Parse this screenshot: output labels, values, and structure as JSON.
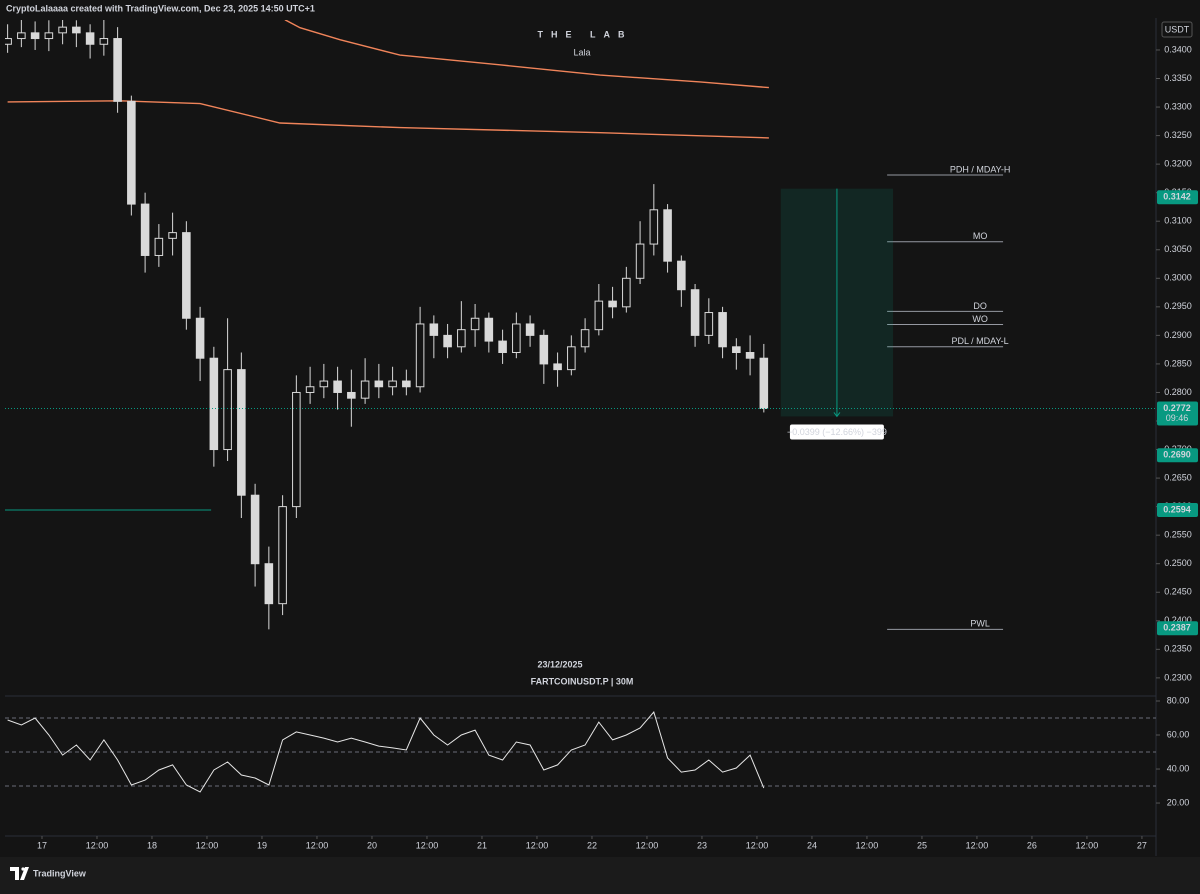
{
  "header": "CryptoLalaaaa created with TradingView.com, Dec 23, 2025 14:50 UTC+1",
  "brand": "TradingView",
  "chart_data": [
    {
      "type": "candlestick",
      "title": "THE LAB",
      "subtitle": "Lala",
      "date_label": "23/12/2025",
      "symbol_label": "FARTCOINUSDT.P | 30M",
      "currency": "USDT",
      "candle_color": "#d9d9d9",
      "x": [
        -7.5,
        -4.5,
        -1.5,
        1.5,
        4.5,
        7.5,
        10.5,
        13.5,
        16.5,
        19.5,
        22.5,
        25.5,
        28.5,
        31.5,
        34.5,
        37.5,
        40.5,
        43.5,
        46.5,
        49.5,
        52.5,
        55.5,
        58.5,
        61.5,
        64.5,
        67.5,
        70.5,
        73.5,
        76.5,
        79.5,
        82.5,
        85.5,
        88.5,
        91.5,
        94.5,
        97.5,
        100.5,
        103.5,
        106.5,
        109.5,
        112.5,
        115.5,
        118.5,
        121.5,
        124.5,
        127.5,
        130.5,
        133.5,
        136.5,
        139.5,
        142.5,
        145.5,
        148.5,
        151.5,
        154.5,
        157.5
      ],
      "open": [
        0.341,
        0.342,
        0.343,
        0.342,
        0.343,
        0.344,
        0.343,
        0.341,
        0.342,
        0.331,
        0.313,
        0.304,
        0.307,
        0.308,
        0.293,
        0.286,
        0.27,
        0.284,
        0.262,
        0.25,
        0.243,
        0.26,
        0.28,
        0.281,
        0.282,
        0.28,
        0.279,
        0.282,
        0.281,
        0.282,
        0.281,
        0.292,
        0.29,
        0.288,
        0.291,
        0.293,
        0.289,
        0.287,
        0.292,
        0.29,
        0.285,
        0.284,
        0.288,
        0.291,
        0.296,
        0.295,
        0.3,
        0.306,
        0.312,
        0.303,
        0.298,
        0.29,
        0.294,
        0.288,
        0.287,
        0.286
      ],
      "high": [
        0.3445,
        0.3455,
        0.345,
        0.3452,
        0.3453,
        0.3452,
        0.3445,
        0.3453,
        0.344,
        0.332,
        0.315,
        0.3095,
        0.3115,
        0.31,
        0.295,
        0.288,
        0.293,
        0.287,
        0.264,
        0.253,
        0.262,
        0.283,
        0.2845,
        0.285,
        0.2845,
        0.284,
        0.286,
        0.285,
        0.2845,
        0.284,
        0.295,
        0.2935,
        0.292,
        0.296,
        0.2955,
        0.294,
        0.291,
        0.294,
        0.2935,
        0.291,
        0.287,
        0.29,
        0.293,
        0.299,
        0.2985,
        0.302,
        0.31,
        0.3165,
        0.313,
        0.304,
        0.299,
        0.2965,
        0.295,
        0.2895,
        0.29,
        0.2885
      ],
      "low": [
        0.3395,
        0.3405,
        0.34,
        0.3398,
        0.341,
        0.3405,
        0.3385,
        0.339,
        0.329,
        0.311,
        0.301,
        0.302,
        0.304,
        0.291,
        0.282,
        0.267,
        0.268,
        0.258,
        0.246,
        0.2385,
        0.241,
        0.258,
        0.278,
        0.279,
        0.277,
        0.274,
        0.278,
        0.279,
        0.2795,
        0.2795,
        0.28,
        0.286,
        0.286,
        0.287,
        0.288,
        0.287,
        0.285,
        0.286,
        0.288,
        0.2815,
        0.281,
        0.283,
        0.287,
        0.29,
        0.293,
        0.294,
        0.299,
        0.304,
        0.301,
        0.295,
        0.288,
        0.2885,
        0.286,
        0.284,
        0.283,
        0.2765
      ],
      "close": [
        0.342,
        0.343,
        0.342,
        0.343,
        0.344,
        0.343,
        0.341,
        0.342,
        0.331,
        0.313,
        0.304,
        0.307,
        0.308,
        0.293,
        0.286,
        0.27,
        0.284,
        0.262,
        0.25,
        0.243,
        0.26,
        0.28,
        0.281,
        0.282,
        0.28,
        0.279,
        0.282,
        0.281,
        0.282,
        0.281,
        0.292,
        0.29,
        0.288,
        0.291,
        0.293,
        0.289,
        0.287,
        0.292,
        0.29,
        0.285,
        0.284,
        0.288,
        0.291,
        0.296,
        0.295,
        0.3,
        0.306,
        0.312,
        0.303,
        0.298,
        0.29,
        0.294,
        0.288,
        0.287,
        0.286,
        0.2772
      ],
      "xlim": [
        -8.07,
        242.85
      ],
      "ylim": [
        0.227,
        0.34525
      ],
      "xticks": [
        {
          "value": 0,
          "label": "17"
        },
        {
          "value": 12,
          "label": "12:00"
        },
        {
          "value": 24,
          "label": "18"
        },
        {
          "value": 36,
          "label": "12:00"
        },
        {
          "value": 48,
          "label": "19"
        },
        {
          "value": 60,
          "label": "12:00"
        },
        {
          "value": 72,
          "label": "20"
        },
        {
          "value": 84,
          "label": "12:00"
        },
        {
          "value": 96,
          "label": "21"
        },
        {
          "value": 108,
          "label": "12:00"
        },
        {
          "value": 120,
          "label": "22"
        },
        {
          "value": 132,
          "label": "12:00"
        },
        {
          "value": 144,
          "label": "23"
        },
        {
          "value": 156,
          "label": "12:00"
        },
        {
          "value": 168,
          "label": "24"
        },
        {
          "value": 180,
          "label": "12:00"
        },
        {
          "value": 192,
          "label": "25"
        },
        {
          "value": 204,
          "label": "12:00"
        },
        {
          "value": 216,
          "label": "26"
        },
        {
          "value": 228,
          "label": "12:00"
        },
        {
          "value": 240,
          "label": "27"
        }
      ],
      "yticks": [
        {
          "value": 0.23,
          "label": "0.2300"
        },
        {
          "value": 0.235,
          "label": "0.2350"
        },
        {
          "value": 0.24,
          "label": "0.2400"
        },
        {
          "value": 0.245,
          "label": "0.2450"
        },
        {
          "value": 0.25,
          "label": "0.2500"
        },
        {
          "value": 0.255,
          "label": "0.2550"
        },
        {
          "value": 0.26,
          "label": "0.2600"
        },
        {
          "value": 0.265,
          "label": "0.2650"
        },
        {
          "value": 0.27,
          "label": "0.2700"
        },
        {
          "value": 0.275,
          "label": "0.2750"
        },
        {
          "value": 0.28,
          "label": "0.2800"
        },
        {
          "value": 0.285,
          "label": "0.2850"
        },
        {
          "value": 0.29,
          "label": "0.2900"
        },
        {
          "value": 0.295,
          "label": "0.2950"
        },
        {
          "value": 0.3,
          "label": "0.3000"
        },
        {
          "value": 0.305,
          "label": "0.3050"
        },
        {
          "value": 0.31,
          "label": "0.3100"
        },
        {
          "value": 0.315,
          "label": "0.3150"
        },
        {
          "value": 0.32,
          "label": "0.3200"
        },
        {
          "value": 0.325,
          "label": "0.3250"
        },
        {
          "value": 0.33,
          "label": "0.3300"
        },
        {
          "value": 0.335,
          "label": "0.3350"
        },
        {
          "value": 0.34,
          "label": "0.3400"
        }
      ],
      "moving_averages": [
        {
          "color": "#f0845a",
          "x": [
            53.0,
            56.3,
            65.0,
            78.1,
            99.9,
            121.8,
            143.6,
            158.6
          ],
          "values": [
            0.3453,
            0.3439,
            0.3418,
            0.3391,
            0.3374,
            0.3356,
            0.3344,
            0.3334
          ]
        },
        {
          "color": "#f0845a",
          "x": [
            -7.5,
            17.0,
            34.5,
            51.9,
            78.1,
            121.8,
            158.6
          ],
          "values": [
            0.3309,
            0.3311,
            0.3306,
            0.3272,
            0.3264,
            0.3255,
            0.3246
          ]
        }
      ],
      "levels_x": [
        184.4,
        209.7
      ],
      "level_color": "#9598a1",
      "levels": [
        {
          "label": "PDH / MDAY-H",
          "value": 0.3181
        },
        {
          "label": "MO",
          "value": 0.3064
        },
        {
          "label": "DO",
          "value": 0.2942
        },
        {
          "label": "WO",
          "value": 0.2919
        },
        {
          "label": "PDL / MDAY-L",
          "value": 0.288
        },
        {
          "label": "PWL",
          "value": 0.2385
        }
      ],
      "tag_color": "#089981",
      "price_tags": [
        {
          "value": 0.3142,
          "label": "0.3142"
        },
        {
          "value": 0.269,
          "label": "0.2690"
        },
        {
          "value": 0.2594,
          "label": "0.2594",
          "line_x": [
            -8.07,
            36.9
          ]
        },
        {
          "value": 0.2387,
          "label": "0.2387"
        }
      ],
      "current_price": {
        "value": 0.2772,
        "label": "0.2772",
        "countdown": "09:46"
      },
      "measure": {
        "from": 0.3157,
        "to": 0.2758,
        "x": [
          161.2,
          185.7
        ],
        "label": "−0.0399 (−12.66%) −399"
      }
    },
    {
      "type": "line",
      "color": "#e6e6e6",
      "x": [
        -7.5,
        -4.5,
        -1.5,
        1.5,
        4.5,
        7.5,
        10.5,
        13.5,
        16.5,
        19.5,
        22.5,
        25.5,
        28.5,
        31.5,
        34.5,
        37.5,
        40.5,
        43.5,
        46.5,
        49.5,
        52.5,
        55.5,
        58.5,
        61.5,
        64.5,
        67.5,
        70.5,
        73.5,
        76.5,
        79.5,
        82.5,
        85.5,
        88.5,
        91.5,
        94.5,
        97.5,
        100.5,
        103.5,
        106.5,
        109.5,
        112.5,
        115.5,
        118.5,
        121.5,
        124.5,
        127.5,
        130.5,
        133.5,
        136.5,
        139.5,
        142.5,
        145.5,
        148.5,
        151.5,
        154.5,
        157.5
      ],
      "values": [
        68.8,
        65.9,
        70.0,
        60.0,
        48.2,
        54.1,
        45.3,
        57.1,
        45.3,
        30.6,
        33.5,
        39.4,
        42.4,
        30.6,
        26.5,
        39.4,
        44.1,
        36.5,
        34.7,
        30.6,
        57.1,
        61.8,
        60.0,
        58.2,
        55.9,
        58.2,
        55.9,
        53.5,
        52.4,
        51.2,
        70.0,
        60.0,
        54.1,
        60.0,
        62.9,
        48.2,
        45.3,
        55.9,
        54.1,
        39.4,
        42.4,
        51.2,
        54.1,
        67.6,
        57.1,
        60.0,
        64.1,
        73.5,
        46.5,
        38.2,
        39.4,
        45.3,
        38.2,
        40.6,
        48.2,
        28.8
      ],
      "xlim": [
        -8.07,
        242.85
      ],
      "ylim": [
        1.2,
        82.35
      ],
      "yticks": [
        {
          "value": 20,
          "label": "20.00"
        },
        {
          "value": 40,
          "label": "40.00"
        },
        {
          "value": 60,
          "label": "60.00"
        },
        {
          "value": 80,
          "label": "80.00"
        }
      ],
      "levels": [
        70,
        50,
        30
      ]
    }
  ]
}
